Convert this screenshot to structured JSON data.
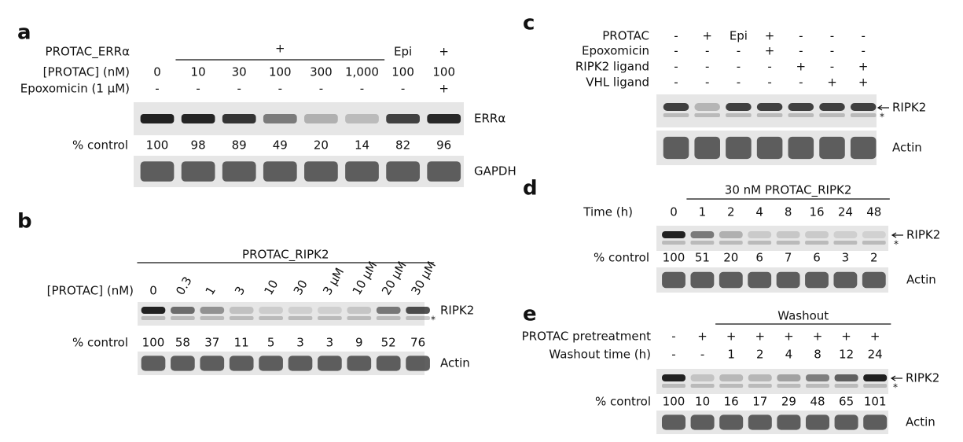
{
  "panels": [
    {
      "letter": "a",
      "rows": [
        {
          "label": "PROTAC_ERRα",
          "group": "+",
          "cells": [
            null,
            null,
            null,
            null,
            null,
            null,
            "Epi",
            "+"
          ]
        },
        {
          "label": "[PROTAC] (nM)",
          "cells": [
            0,
            10,
            30,
            100,
            300,
            "1,000",
            100,
            100
          ]
        },
        {
          "label": "Epoxomicin (1 μM)",
          "cells": [
            "-",
            "-",
            "-",
            "-",
            "-",
            "-",
            "-",
            "+"
          ]
        }
      ],
      "blots": [
        {
          "label": "ERRα"
        },
        {
          "label": "GAPDH"
        }
      ],
      "percent": {
        "label": "% control",
        "values": [
          100,
          98,
          89,
          49,
          20,
          14,
          82,
          96
        ]
      }
    },
    {
      "letter": "b",
      "header": "PROTAC_RIPK2",
      "rows": [
        {
          "label": "[PROTAC] (nM)",
          "cells": [
            0,
            0.3,
            1,
            3,
            10,
            30,
            "3 μM",
            "10 μM",
            "20 μM",
            "30 μM"
          ]
        }
      ],
      "blots": [
        {
          "label": "RIPK2",
          "marker": "*"
        },
        {
          "label": "Actin"
        }
      ],
      "percent": {
        "label": "% control",
        "values": [
          100,
          58,
          37,
          11,
          5,
          3,
          3,
          9,
          52,
          76
        ]
      }
    },
    {
      "letter": "c",
      "rows": [
        {
          "label": "PROTAC",
          "cells": [
            "-",
            "+",
            "Epi",
            "+",
            "-",
            "-",
            "-"
          ]
        },
        {
          "label": "Epoxomicin",
          "cells": [
            "-",
            "-",
            "-",
            "+",
            "-",
            "-",
            "-"
          ]
        },
        {
          "label": "RIPK2 ligand",
          "cells": [
            "-",
            "-",
            "-",
            "-",
            "+",
            "-",
            "+"
          ]
        },
        {
          "label": "VHL ligand",
          "cells": [
            "-",
            "-",
            "-",
            "-",
            "-",
            "+",
            "+"
          ]
        }
      ],
      "blots": [
        {
          "label": "RIPK2",
          "marker": "*"
        },
        {
          "label": "Actin"
        }
      ]
    },
    {
      "letter": "d",
      "header": "30 nM PROTAC_RIPK2",
      "rows": [
        {
          "label": "Time (h)",
          "cells": [
            0,
            1,
            2,
            4,
            8,
            16,
            24,
            48
          ]
        }
      ],
      "blots": [
        {
          "label": "RIPK2",
          "marker": "*"
        },
        {
          "label": "Actin"
        }
      ],
      "percent": {
        "label": "% control",
        "values": [
          100,
          51,
          20,
          6,
          7,
          6,
          3,
          2
        ]
      }
    },
    {
      "letter": "e",
      "header": "Washout",
      "rows": [
        {
          "label": "PROTAC pretreatment",
          "cells": [
            "-",
            "+",
            "+",
            "+",
            "+",
            "+",
            "+",
            "+"
          ]
        },
        {
          "label": "Washout time (h)",
          "cells": [
            "-",
            "-",
            1,
            2,
            4,
            8,
            12,
            24
          ]
        }
      ],
      "blots": [
        {
          "label": "RIPK2",
          "marker": "*"
        },
        {
          "label": "Actin"
        }
      ],
      "percent": {
        "label": "% control",
        "values": [
          100,
          10,
          16,
          17,
          29,
          48,
          65,
          101
        ]
      }
    }
  ]
}
